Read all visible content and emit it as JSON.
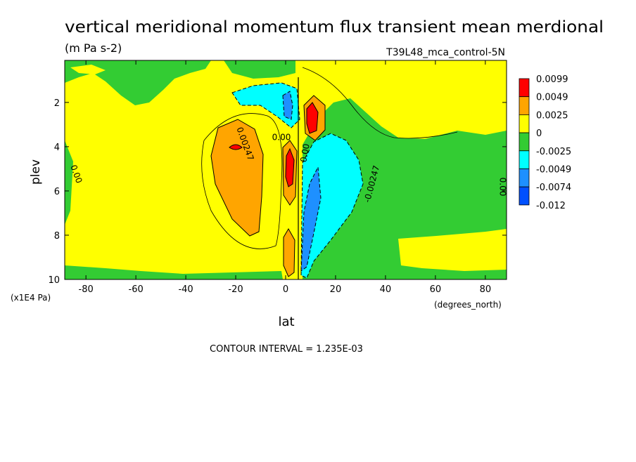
{
  "chart_data": {
    "type": "contour",
    "title": "vertical meridional momentum flux transient mean merdional",
    "subtitle": "(m Pa s-2)",
    "dataset": "T39L48_mca_control-5N",
    "x_label": "lat",
    "y_label": "plev",
    "x_units": "(degrees_north)",
    "y_units": "(x1E4 Pa)",
    "note": "CONTOUR INTERVAL = 1.235E-03",
    "xlim": [
      -88.5,
      88.5
    ],
    "ylim": [
      10,
      0.1
    ],
    "xticks": [
      -80,
      -60,
      -40,
      -20,
      0,
      20,
      40,
      60,
      80
    ],
    "yticks": [
      2,
      4,
      6,
      8,
      10
    ],
    "levels": [
      0.0099,
      0.0049,
      0.0025,
      0,
      -0.0025,
      -0.0049,
      -0.0074,
      -0.012
    ],
    "colors": [
      "#ff0000",
      "#ffa500",
      "#ffff00",
      "#33cc33",
      "#00ffff",
      "#1e90ff",
      "#0050ff"
    ],
    "contour_labels": [
      0.00247,
      -0.00247,
      {
        "value": 0,
        "label": "0.00"
      },
      {
        "value": 0,
        "label": "0.00"
      },
      {
        "value": 0,
        "label": "0.00"
      },
      {
        "value": 0,
        "label": "0.00"
      }
    ]
  }
}
